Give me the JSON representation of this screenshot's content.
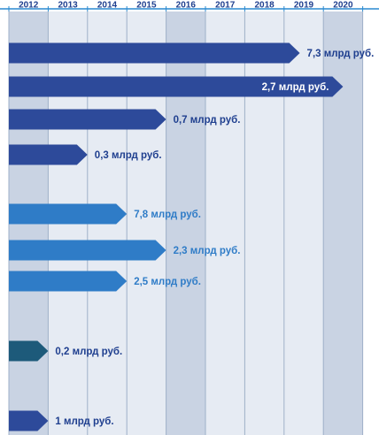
{
  "chart_data": {
    "type": "bar",
    "orientation": "horizontal",
    "x_axis": {
      "position": "top",
      "ticks": [
        "2012",
        "2013",
        "2014",
        "2015",
        "2016",
        "2017",
        "2018",
        "2019",
        "2020"
      ],
      "range": [
        2012,
        2021
      ]
    },
    "grid": true,
    "bars": [
      {
        "start": 2012,
        "end": 2019.4,
        "label": "7,3 млрд руб.",
        "label_position": "outside",
        "color": "#2d4a9a"
      },
      {
        "start": 2012,
        "end": 2020.5,
        "label": "2,7 млрд руб.",
        "label_position": "inside",
        "color": "#2d4a9a"
      },
      {
        "start": 2012,
        "end": 2016.0,
        "label": "0,7 млрд руб.",
        "label_position": "outside",
        "color": "#2d4a9a"
      },
      {
        "start": 2012,
        "end": 2014.0,
        "label": "0,3 млрд руб.",
        "label_position": "outside",
        "color": "#2d4a9a"
      },
      {
        "start": 2012,
        "end": 2015.0,
        "label": "7,8 млрд руб.",
        "label_position": "outside",
        "color": "#2f7cc7"
      },
      {
        "start": 2012,
        "end": 2016.0,
        "label": "2,3 млрд руб.",
        "label_position": "outside",
        "color": "#2f7cc7"
      },
      {
        "start": 2012,
        "end": 2015.0,
        "label": "2,5 млрд руб.",
        "label_position": "outside",
        "color": "#2f7cc7"
      },
      {
        "start": 2012,
        "end": 2013.0,
        "label": "0,2 млрд руб.",
        "label_position": "outside",
        "color": "#1d5a7a"
      },
      {
        "start": 2012,
        "end": 2013.0,
        "label": "1 млрд руб.",
        "label_position": "outside",
        "color": "#2d4a9a"
      }
    ]
  },
  "colors": {
    "axis": "#2a8ad0",
    "grid": "#9fb0c8",
    "shaded_column": "#c9d3e3",
    "light_column": "#e6ebf3",
    "year_text": "#1f3f8f",
    "label_dark": "#1f3f8f",
    "label_light": "#2f7cc7",
    "label_inside": "#ffffff"
  }
}
